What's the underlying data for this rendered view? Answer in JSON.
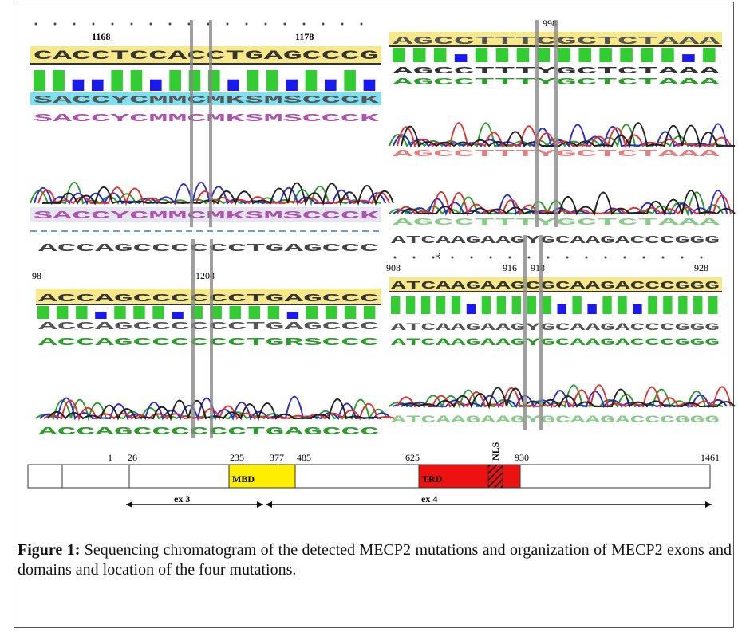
{
  "panels": [
    {
      "ticks": [
        "1168",
        "1178"
      ],
      "reference": "CACCTCCACCTGAGCCCG",
      "rows": [
        "SACCYCMMCMKSMSCCCK",
        "SACCYCMMCMKSMSCCCK"
      ],
      "bottom": "SACCYCMMCMKSMSCCCK"
    },
    {
      "ticks": [
        "998"
      ],
      "reference": "AGCCTTTCGCTCTAAA",
      "rows": [
        "AGCCTTTYGCTCTAAA",
        "AGCCTTTYGCTCTAAA"
      ],
      "middle": "AGCCTTTYGCTCTAAA",
      "bottom": "AGCCTTTYGCTCTAAA"
    },
    {
      "top": "ACCAGCCCCCCTGAGCCC",
      "ticks": [
        "98",
        "1208"
      ],
      "reference": "ACCAGCCCCCCTGAGCCC",
      "rows": [
        "ACCAGCCCCCCTGAGCCC",
        "ACCAGCCCCCCTGRSCCC"
      ],
      "bottom": "ACCAGCCCCCCTGAGCCC"
    },
    {
      "top": "ATCAAGAAGYGCAAGACCCGGG",
      "mark": "R",
      "ticks": [
        "908",
        "916",
        "918",
        "928"
      ],
      "reference": "ATCAAGAAGCGCAAGACCCGGG",
      "rows": [
        "ATCAAGAAGYGCAAGACCCGGG",
        "ATCAAGAAGYGCAAGACCCGGG"
      ],
      "bottom": "ATCAAGAAGYGCAAGACCCGGG"
    }
  ],
  "domain_map": {
    "positions": [
      "1",
      "26",
      "235",
      "377",
      "485",
      "625",
      "930",
      "1461"
    ],
    "domains": [
      "MBD",
      "TRD"
    ],
    "nls": "NLS",
    "exons": [
      "ex 3",
      "ex 4"
    ]
  },
  "caption": {
    "label": "Figure 1:",
    "text": "Sequencing chromatogram of the detected MECP2 mutations and organization of MECP2 exons and domains and location of the four mutations."
  }
}
